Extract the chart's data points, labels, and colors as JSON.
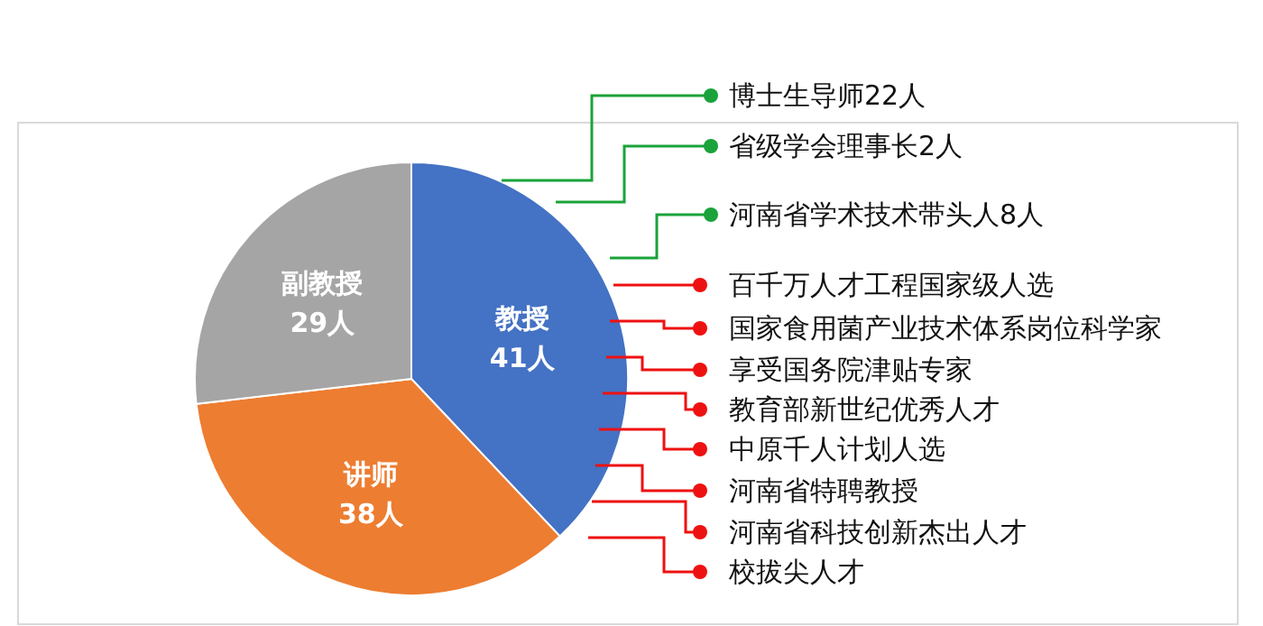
{
  "chart_data": {
    "type": "pie",
    "categories": [
      "教授",
      "讲师",
      "副教授"
    ],
    "values": [
      41,
      38,
      29
    ],
    "colors": [
      "#4472c4",
      "#ed7d31",
      "#a5a5a5"
    ],
    "value_labels": [
      "41人",
      "38人",
      "29人"
    ],
    "legend": false,
    "annotations": [
      "博士生导师22人",
      "省级学会理事长2人",
      "河南省学术技术带头人8人",
      "百千万人才工程国家级人选",
      "国家食用菌产业技术体系岗位科学家",
      "享受国务院津贴专家",
      "教育部新世纪优秀人才",
      "中原千人计划人选",
      "河南省特聘教授",
      "河南省科技创新杰出人才",
      "校拔尖人才"
    ]
  }
}
